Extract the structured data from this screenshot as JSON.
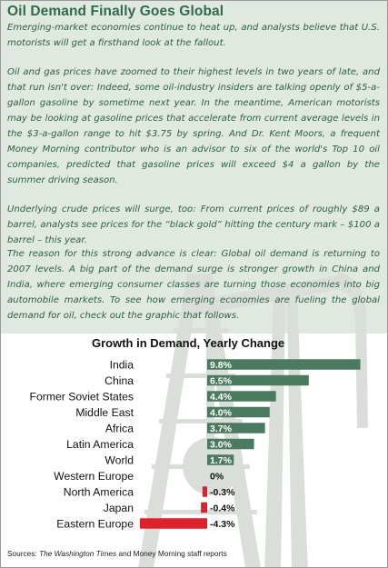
{
  "article": {
    "title": "Oil Demand Finally Goes Global",
    "paragraphs": [
      "Emerging-market economies continue to heat up, and analysts believe that U.S. motorists will get a firsthand look at the fallout.",
      "Oil and gas prices have zoomed to their highest levels in two years of late, and that run isn't over: Indeed, some oil-industry insiders are talking openly of $5-a-gallon gasoline by sometime next year. In the meantime, American motorists may be looking at gasoline prices that accelerate from current average levels in the $3-a-gallon range to hit $3.75 by spring. And Dr. Kent Moors, a frequent Money Morning contributor who is an advisor to six of the world's Top 10 oil companies, predicted that gasoline prices will exceed $4 a gallon by the summer driving season.",
      "Underlying crude prices will surge, too: From current prices of roughly $89 a barrel, analysts see prices for the “black gold” hitting the century mark – $100 a barrel – this year.",
      "The reason for this strong advance is clear: Global oil demand is returning to 2007 levels. A big part of the demand surge is stronger growth in China and India, where emerging consumer classes are turning those economies into big automobile markets. To see how emerging economies are fueling the global demand for oil, check out the graphic that follows."
    ]
  },
  "chart_data": {
    "type": "bar",
    "orientation": "horizontal",
    "title": "Growth in Demand, Yearly Change",
    "categories": [
      "India",
      "China",
      "Former Soviet States",
      "Middle East",
      "Africa",
      "Latin America",
      "World",
      "Western Europe",
      "North America",
      "Japan",
      "Eastern Europe"
    ],
    "values": [
      9.8,
      6.5,
      4.4,
      4.0,
      3.7,
      3.0,
      1.7,
      0,
      -0.3,
      -0.4,
      -4.3
    ],
    "value_labels": [
      "9.8%",
      "6.5%",
      "4.4%",
      "4.0%",
      "3.7%",
      "3.0%",
      "1.7%",
      "0%",
      "-0.3%",
      "-0.4%",
      "-4.3%"
    ],
    "unit": "%",
    "xlim": [
      -4.3,
      9.8
    ],
    "grid": false,
    "legend": "none",
    "colors": {
      "positive": "#4a7a5f",
      "negative": "#e0202a",
      "positive_label": "#ffffff",
      "negative_label": "#111111"
    }
  },
  "source": {
    "prefix": "Sources: ",
    "publication": "The Washington Times",
    "suffix": " and Money Morning staff reports"
  },
  "colors": {
    "title_green": "#2f6b4a",
    "text_green": "#2c6142",
    "text_panel_bg": "#dfe9df",
    "silhouette": "#d9ded9"
  }
}
